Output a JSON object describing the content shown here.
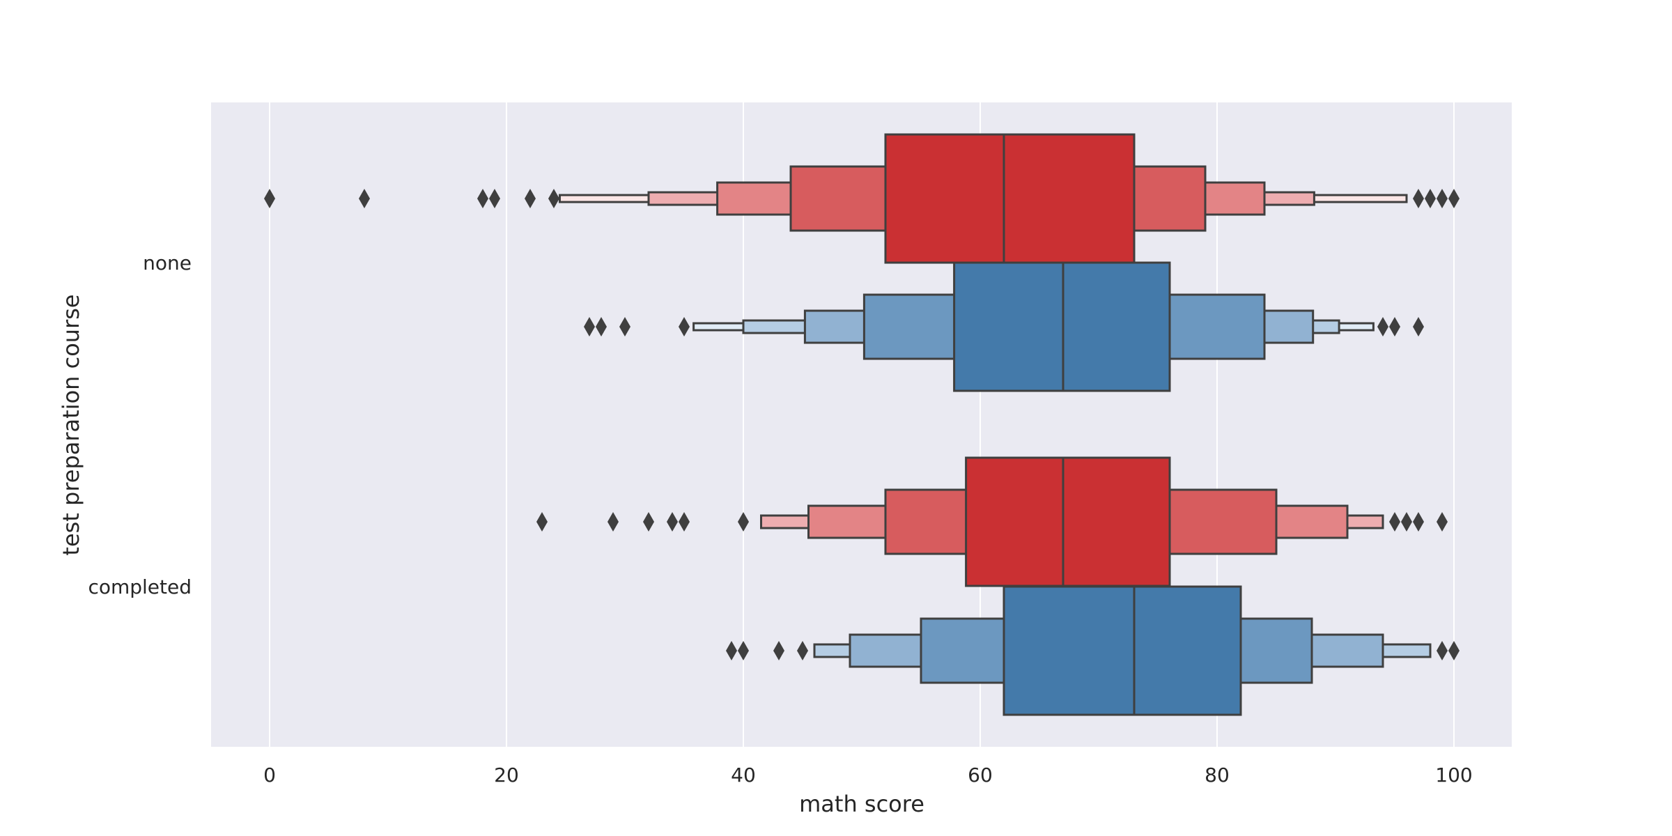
{
  "chart_data": {
    "type": "boxen",
    "orientation": "horizontal",
    "xlabel": "math score",
    "ylabel": "test preparation course",
    "xlim": [
      -5,
      105
    ],
    "xticks": [
      0,
      20,
      40,
      60,
      80,
      100
    ],
    "xtick_labels": [
      "0",
      "20",
      "40",
      "60",
      "80",
      "100"
    ],
    "grid": true,
    "legend": "none",
    "categories": [
      "none",
      "completed"
    ],
    "colors": {
      "background": "#eaeaf2",
      "grid": "#ffffff",
      "edge": "#3f3f3f",
      "red_levels": [
        "#ca3033",
        "#d75c5e",
        "#e38486",
        "#eeadb0",
        "#fbe6e6"
      ],
      "blue_levels": [
        "#447aaa",
        "#6c98c0",
        "#91b2d2",
        "#b5cde4",
        "#e2edf7"
      ]
    },
    "series": [
      {
        "category": "none",
        "palette": "red",
        "median": 62,
        "boxes": [
          [
            52,
            73
          ],
          [
            44,
            79
          ],
          [
            37.8,
            84
          ],
          [
            32,
            88.2
          ],
          [
            24.5,
            96
          ]
        ],
        "outliers": [
          0,
          8,
          18,
          19,
          22,
          24,
          97,
          98,
          99,
          100
        ]
      },
      {
        "category": "none",
        "palette": "blue",
        "median": 67,
        "boxes": [
          [
            57.8,
            76
          ],
          [
            50.2,
            84
          ],
          [
            45.2,
            88.1
          ],
          [
            40,
            90.3
          ],
          [
            35.8,
            93.2
          ]
        ],
        "outliers": [
          27,
          28,
          30,
          35,
          94,
          95,
          97
        ]
      },
      {
        "category": "completed",
        "palette": "red",
        "median": 67,
        "boxes": [
          [
            58.8,
            76
          ],
          [
            52,
            85
          ],
          [
            45.5,
            91
          ],
          [
            41.5,
            94
          ]
        ],
        "outliers": [
          23,
          29,
          32,
          34,
          35,
          40,
          95,
          96,
          97,
          99
        ]
      },
      {
        "category": "completed",
        "palette": "blue",
        "median": 73,
        "boxes": [
          [
            62,
            82
          ],
          [
            55,
            88
          ],
          [
            49,
            94
          ],
          [
            46,
            98
          ]
        ],
        "outliers": [
          39,
          40,
          43,
          45,
          99,
          100
        ]
      }
    ]
  }
}
